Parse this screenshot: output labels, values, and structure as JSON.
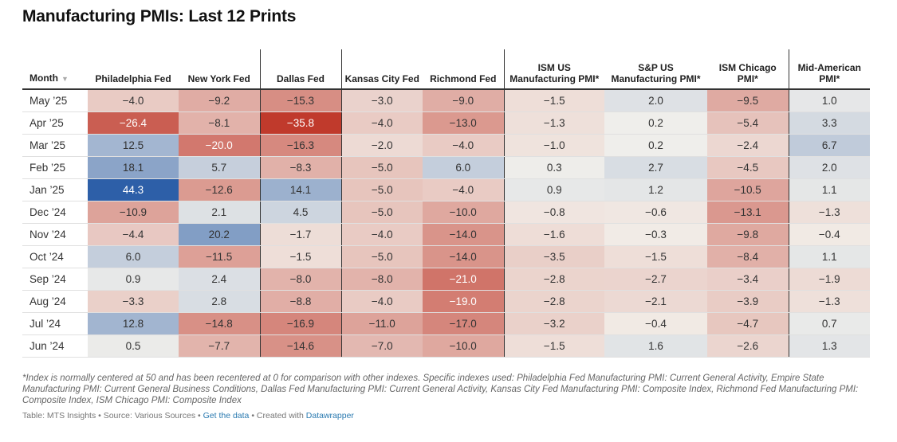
{
  "title": "Manufacturing PMIs: Last 12 Prints",
  "chart_data": {
    "type": "table",
    "title": "Manufacturing PMIs: Last 12 Prints",
    "month_header": "Month",
    "columns": [
      "Philadelphia Fed",
      "New York Fed",
      "Dallas Fed",
      "Kansas City Fed",
      "Richmond Fed",
      "ISM US Manufacturing PMI*",
      "S&P US Manufacturing PMI*",
      "ISM Chicago PMI*",
      "Mid-American PMI*"
    ],
    "rows": [
      {
        "month": "May ’25",
        "values": [
          -4.0,
          -9.2,
          -15.3,
          -3.0,
          -9.0,
          -1.5,
          2.0,
          -9.5,
          1.0
        ]
      },
      {
        "month": "Apr ’25",
        "values": [
          -26.4,
          -8.1,
          -35.8,
          -4.0,
          -13.0,
          -1.3,
          0.2,
          -5.4,
          3.3
        ]
      },
      {
        "month": "Mar ’25",
        "values": [
          12.5,
          -20.0,
          -16.3,
          -2.0,
          -4.0,
          -1.0,
          0.2,
          -2.4,
          6.7
        ]
      },
      {
        "month": "Feb ’25",
        "values": [
          18.1,
          5.7,
          -8.3,
          -5.0,
          6.0,
          0.3,
          2.7,
          -4.5,
          2.0
        ]
      },
      {
        "month": "Jan ’25",
        "values": [
          44.3,
          -12.6,
          14.1,
          -5.0,
          -4.0,
          0.9,
          1.2,
          -10.5,
          1.1
        ]
      },
      {
        "month": "Dec ’24",
        "values": [
          -10.9,
          2.1,
          4.5,
          -5.0,
          -10.0,
          -0.8,
          -0.6,
          -13.1,
          -1.3
        ]
      },
      {
        "month": "Nov ’24",
        "values": [
          -4.4,
          20.2,
          -1.7,
          -4.0,
          -14.0,
          -1.6,
          -0.3,
          -9.8,
          -0.4
        ]
      },
      {
        "month": "Oct ’24",
        "values": [
          6.0,
          -11.5,
          -1.5,
          -5.0,
          -14.0,
          -3.5,
          -1.5,
          -8.4,
          1.1
        ]
      },
      {
        "month": "Sep ’24",
        "values": [
          0.9,
          2.4,
          -8.0,
          -8.0,
          -21.0,
          -2.8,
          -2.7,
          -3.4,
          -1.9
        ]
      },
      {
        "month": "Aug ’24",
        "values": [
          -3.3,
          2.8,
          -8.8,
          -4.0,
          -19.0,
          -2.8,
          -2.1,
          -3.9,
          -1.3
        ]
      },
      {
        "month": "Jul ’24",
        "values": [
          12.8,
          -14.8,
          -16.9,
          -11.0,
          -17.0,
          -3.2,
          -0.4,
          -4.7,
          0.7
        ]
      },
      {
        "month": "Jun ’24",
        "values": [
          0.5,
          -7.7,
          -14.6,
          -7.0,
          -10.0,
          -1.5,
          1.6,
          -2.6,
          1.3
        ]
      }
    ],
    "color_scale": {
      "negative": "#c0392b",
      "positive": "#2d5fa8",
      "neutral": "#f3f1ec"
    }
  },
  "notes": "*Index is normally centered at 50 and has been recentered at 0 for comparison with other indexes. Specific indexes used: Philadelphia Fed Manufacturing PMI: Current General Activity, Empire State Manufacturing PMI: Current General Business Conditions, Dallas Fed Manufacturing PMI: Current General Activity, Kansas City Fed Manufacturing PMI: Composite Index, Richmond Fed Manufacturing PMI: Composite Index, ISM Chicago PMI: Composite Index",
  "footer": {
    "table_credit": "Table: MTS Insights",
    "source": "Source: Various Sources",
    "get_data": "Get the data",
    "created_with_label": "Created with",
    "datawrapper": "Datawrapper"
  }
}
